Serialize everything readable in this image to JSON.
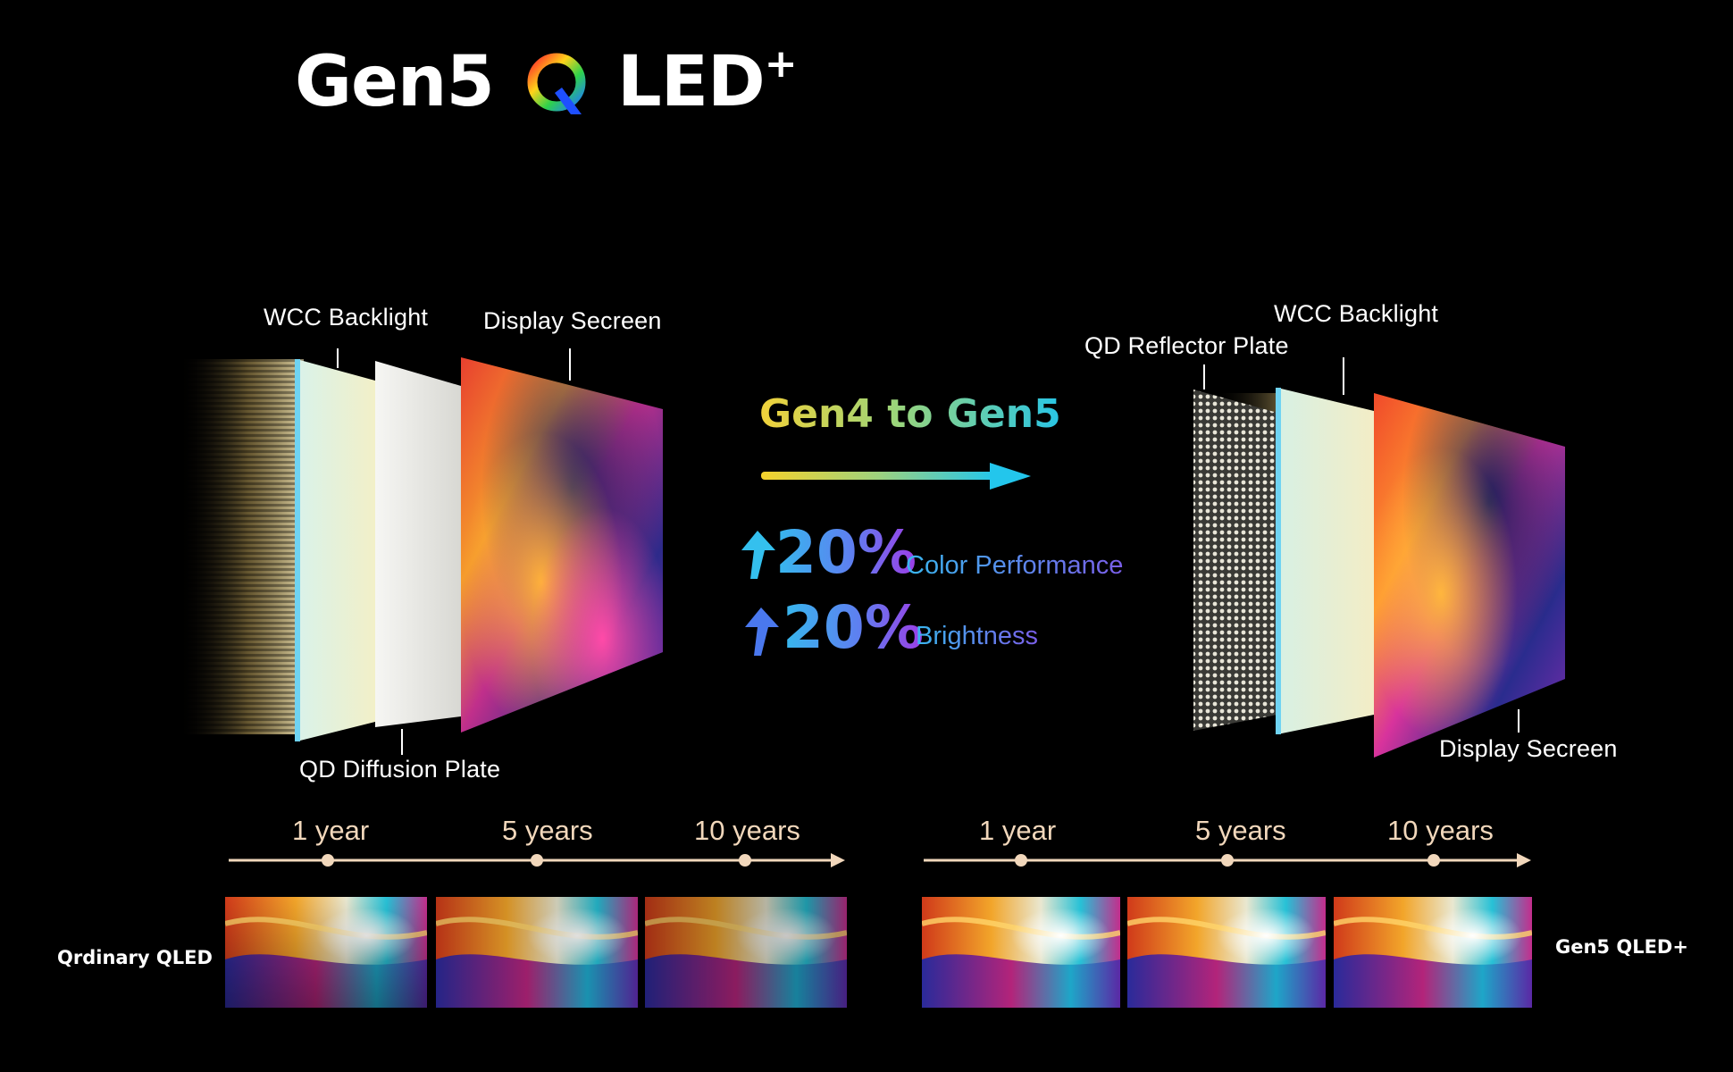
{
  "title": {
    "prefix": "Gen5",
    "suffix": "LED",
    "plus": "+"
  },
  "left_diagram": {
    "wcc_backlight": "WCC Backlight",
    "display_screen": "Display Secreen",
    "qd_diffusion": "QD Diffusion Plate"
  },
  "center": {
    "transition": "Gen4 to Gen5",
    "color_pct": "20%",
    "color_label": "Color Performance",
    "brightness_pct": "20%",
    "brightness_label": "Brightness"
  },
  "right_diagram": {
    "wcc_backlight": "WCC Backlight",
    "qd_reflector": "QD Reflector Plate",
    "display_screen": "Display Secreen"
  },
  "timeline_left": {
    "labels": [
      "1 year",
      "5 years",
      "10 years"
    ]
  },
  "timeline_right": {
    "labels": [
      "1 year",
      "5 years",
      "10 years"
    ]
  },
  "row_labels": {
    "left": "Qrdinary QLED",
    "right": "Gen5 QLED+"
  }
}
